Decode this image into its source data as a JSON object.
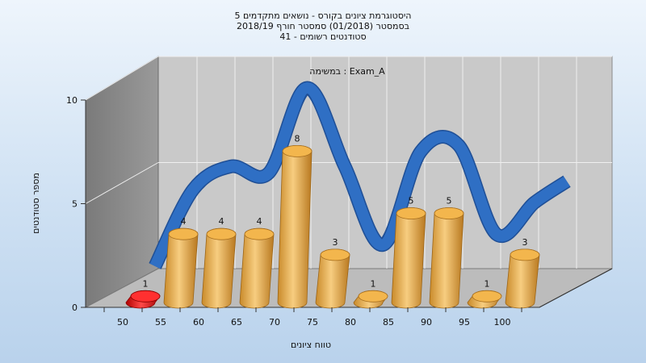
{
  "title_lines": [
    "היסטוגרמת ציונים בקורס - נושאים מתקדמים 5",
    "בסמסטר  (01/2018)  סמסטר חורף 2018/19",
    "סטודנטים רשומים - 41"
  ],
  "chart_data": {
    "type": "bar",
    "categories": [
      "50",
      "55",
      "60",
      "65",
      "70",
      "75",
      "80",
      "85",
      "90",
      "95",
      "100"
    ],
    "values": [
      1,
      4,
      4,
      4,
      8,
      3,
      1,
      5,
      5,
      1,
      3
    ],
    "annotation": "במשימה : Exam_A",
    "xlabel": "טווח ציונים",
    "ylabel": "מספר סטודנטים",
    "ylim": [
      0,
      10
    ],
    "yticks": [
      0,
      5,
      10
    ],
    "highlight_index": 0,
    "curve_values": [
      0.8,
      4.4,
      5.5,
      5.2,
      9.2,
      5.5,
      1.8,
      6.2,
      6.5,
      2.3,
      3.8
    ],
    "colors": {
      "bar": "#e8a94a",
      "highlight": "#e61c1c",
      "curve": "#2f6fc4",
      "back_wall": "#c8c8c8",
      "side_wall": "#8a8a8a",
      "floor": "#bfbfbf"
    },
    "grid": true
  }
}
